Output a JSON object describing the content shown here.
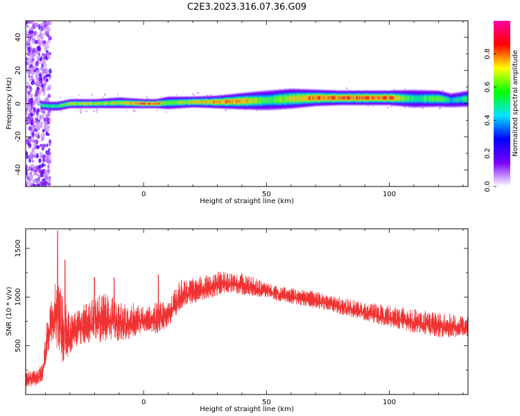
{
  "title": "C2E3.2023.316.07.36.G09",
  "chart_data": [
    {
      "type": "heatmap",
      "xlabel": "Height of straight line (km)",
      "ylabel": "Frequency (Hz)",
      "xlim": [
        -48,
        132
      ],
      "ylim": [
        -50,
        50
      ],
      "xticks": [
        0,
        50,
        100
      ],
      "yticks": [
        -40,
        -20,
        0,
        20,
        40
      ],
      "colorbar": {
        "label": "Normalized spectral amplitude",
        "range": [
          0,
          1
        ],
        "ticks": [
          "0.0",
          "0.2",
          "0.4",
          "0.6",
          "0.8"
        ],
        "colors": [
          "#ffffff",
          "#7b00ff",
          "#0000ff",
          "#00e5ff",
          "#00ff00",
          "#ffff00",
          "#ff0000",
          "#ff00a0"
        ]
      },
      "ridge": {
        "x": [
          -42,
          -38,
          -35,
          -30,
          -20,
          -10,
          0,
          5,
          10,
          20,
          30,
          40,
          50,
          60,
          70,
          80,
          90,
          100,
          110,
          120,
          125,
          132
        ],
        "frequency": [
          -1,
          -1.5,
          -1.5,
          0,
          0,
          0.5,
          0,
          0,
          0.5,
          1,
          1,
          1.5,
          2,
          3,
          3.5,
          3.5,
          3.5,
          3.5,
          3,
          3,
          2,
          3
        ],
        "amplitude": [
          0.6,
          0.6,
          0.6,
          0.75,
          0.75,
          0.7,
          0.95,
          0.9,
          0.65,
          0.8,
          0.85,
          0.85,
          0.6,
          0.75,
          0.9,
          0.9,
          0.9,
          0.9,
          0.55,
          0.7,
          0.5,
          0.6
        ],
        "width_hz": [
          2,
          2,
          2,
          2,
          2,
          2.5,
          2,
          2,
          3,
          2.5,
          3,
          4,
          5,
          5,
          4,
          3.5,
          3.5,
          3.5,
          4.5,
          4,
          3.5,
          4
        ]
      },
      "noise_band": {
        "x_range": [
          -48,
          -38
        ],
        "frequency_range": [
          -50,
          50
        ]
      }
    },
    {
      "type": "line",
      "xlabel": "Height of straight line (km)",
      "ylabel": "SNR (10 * v/v)",
      "xlim": [
        -48,
        132
      ],
      "ylim": [
        0,
        1700
      ],
      "xticks": [
        0,
        50,
        100
      ],
      "yticks": [
        500,
        1000,
        1500
      ],
      "color": "#f03232",
      "envelope": {
        "x": [
          -48,
          -44,
          -41,
          -39,
          -37,
          -35,
          -33,
          -31,
          -29,
          -26,
          -23,
          -20,
          -15,
          -10,
          -5,
          0,
          5,
          10,
          15,
          20,
          25,
          30,
          35,
          40,
          45,
          50,
          55,
          60,
          65,
          70,
          75,
          80,
          85,
          90,
          95,
          100,
          105,
          110,
          115,
          120,
          125,
          132
        ],
        "low": [
          40,
          60,
          100,
          350,
          450,
          250,
          150,
          250,
          400,
          450,
          450,
          450,
          450,
          480,
          500,
          600,
          550,
          650,
          800,
          880,
          920,
          970,
          1000,
          980,
          970,
          970,
          930,
          900,
          880,
          850,
          830,
          790,
          760,
          720,
          680,
          640,
          620,
          590,
          570,
          540,
          540,
          560
        ],
        "high": [
          250,
          250,
          320,
          900,
          1000,
          1300,
          1000,
          900,
          850,
          900,
          950,
          1000,
          1050,
          950,
          950,
          900,
          950,
          950,
          1180,
          1200,
          1230,
          1260,
          1270,
          1250,
          1200,
          1150,
          1120,
          1100,
          1080,
          1060,
          1030,
          1000,
          980,
          950,
          930,
          920,
          900,
          880,
          860,
          850,
          830,
          800
        ]
      },
      "spikes": [
        {
          "x": -35,
          "value": 1680
        },
        {
          "x": -32,
          "value": 1380
        },
        {
          "x": -20,
          "value": 1200
        },
        {
          "x": -12,
          "value": 1200
        },
        {
          "x": 6,
          "value": 1230
        }
      ]
    }
  ]
}
